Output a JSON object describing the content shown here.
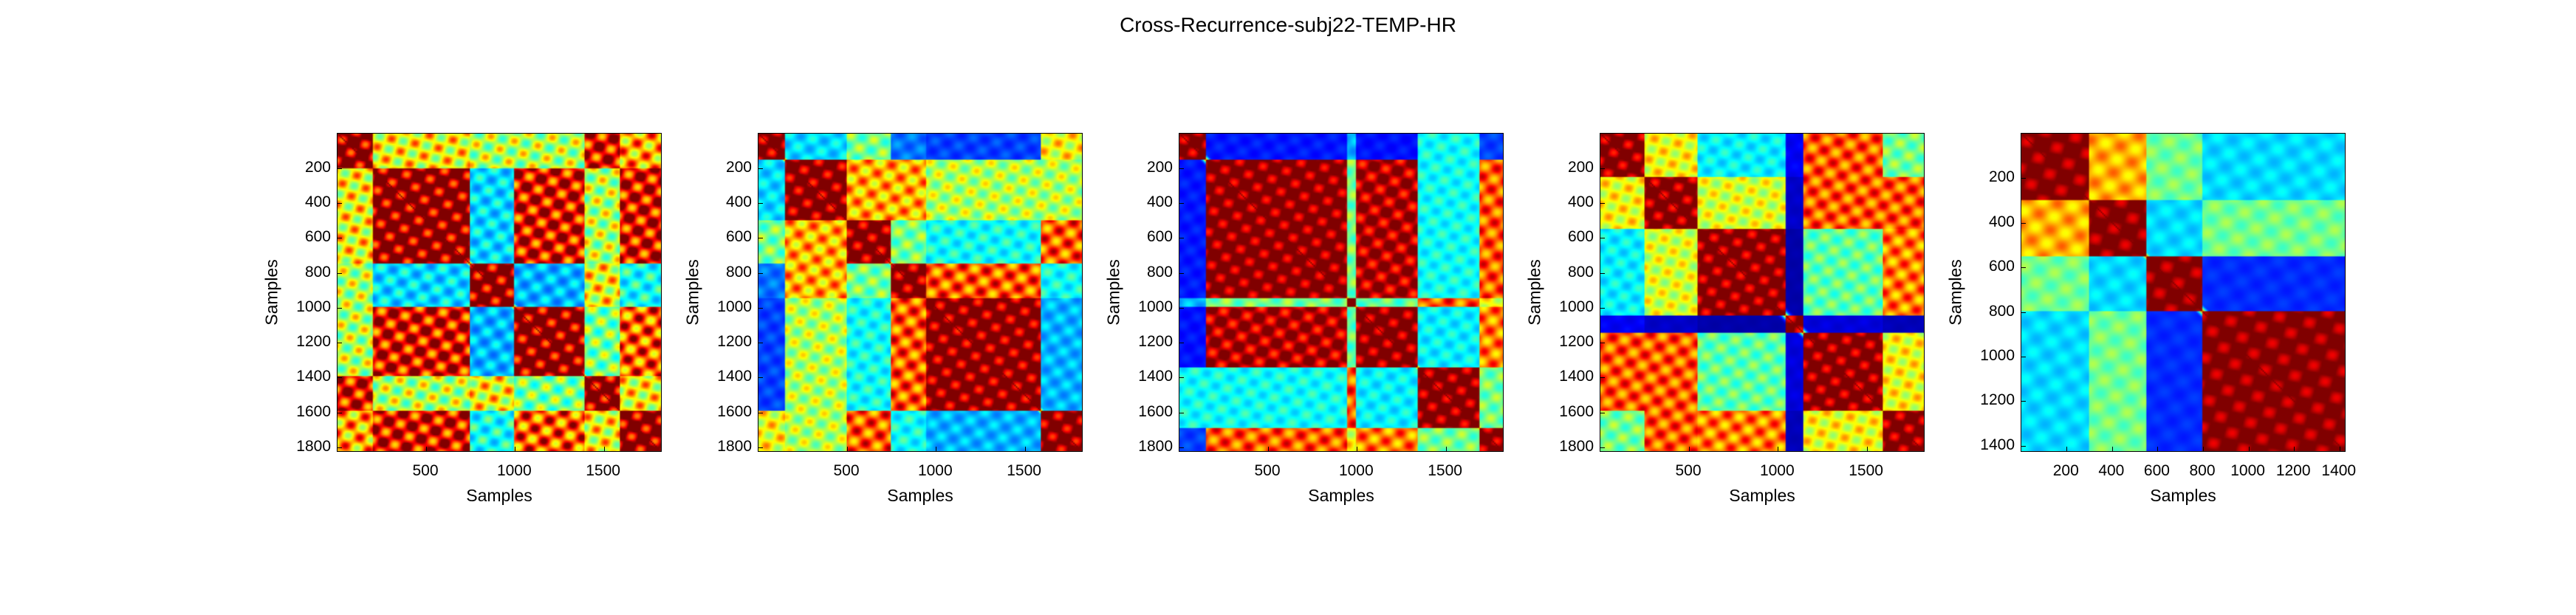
{
  "title": "Cross-Recurrence-subj22-TEMP-HR",
  "chart_data": [
    {
      "type": "heatmap",
      "colormap": "jet",
      "n": 1800,
      "xlabel": "Samples",
      "ylabel": "Samples",
      "xticks": [
        500,
        1000,
        1500
      ],
      "yticks": [
        200,
        400,
        600,
        800,
        1000,
        1200,
        1400,
        1600,
        1800
      ],
      "xlim": [
        1,
        1830
      ],
      "ylim": [
        1,
        1830
      ],
      "segments": [
        0,
        200,
        750,
        1000,
        1400,
        1600,
        1830
      ],
      "states": [
        0.35,
        0.55,
        0.1,
        0.6,
        0.3,
        0.5
      ],
      "texture": 0.25
    },
    {
      "type": "heatmap",
      "colormap": "jet",
      "n": 1800,
      "xlabel": "Samples",
      "ylabel": "Samples",
      "xticks": [
        500,
        1000,
        1500
      ],
      "yticks": [
        200,
        400,
        600,
        800,
        1000,
        1200,
        1400,
        1600,
        1800
      ],
      "xlim": [
        1,
        1830
      ],
      "ylim": [
        1,
        1830
      ],
      "segments": [
        0,
        150,
        500,
        750,
        950,
        1600,
        1830
      ],
      "states": [
        0.15,
        0.6,
        0.45,
        0.75,
        0.85,
        0.35
      ],
      "texture": 0.18
    },
    {
      "type": "heatmap",
      "colormap": "jet",
      "n": 1800,
      "xlabel": "Samples",
      "ylabel": "Samples",
      "xticks": [
        500,
        1000,
        1500
      ],
      "yticks": [
        200,
        400,
        600,
        800,
        1000,
        1200,
        1400,
        1600,
        1800
      ],
      "xlim": [
        1,
        1830
      ],
      "ylim": [
        1,
        1830
      ],
      "segments": [
        0,
        150,
        950,
        1000,
        1350,
        1700,
        1830
      ],
      "states": [
        0.0,
        0.8,
        0.5,
        0.82,
        0.4,
        0.7
      ],
      "texture": 0.15
    },
    {
      "type": "heatmap",
      "colormap": "jet",
      "n": 1800,
      "xlabel": "Samples",
      "ylabel": "Samples",
      "xticks": [
        500,
        1000,
        1500
      ],
      "yticks": [
        200,
        400,
        600,
        800,
        1000,
        1200,
        1400,
        1600,
        1800
      ],
      "xlim": [
        1,
        1830
      ],
      "ylim": [
        1,
        1830
      ],
      "segments": [
        0,
        250,
        550,
        1050,
        1150,
        1600,
        1830
      ],
      "states": [
        0.3,
        0.5,
        0.72,
        -0.6,
        0.4,
        0.6
      ],
      "texture": 0.15
    },
    {
      "type": "heatmap",
      "colormap": "jet",
      "n": 1400,
      "xlabel": "Samples",
      "ylabel": "Samples",
      "xticks": [
        200,
        400,
        600,
        800,
        1000,
        1200,
        1400
      ],
      "yticks": [
        200,
        400,
        600,
        800,
        1000,
        1200,
        1400
      ],
      "xlim": [
        1,
        1430
      ],
      "ylim": [
        1,
        1430
      ],
      "segments": [
        0,
        300,
        550,
        800,
        1430
      ],
      "states": [
        0.3,
        0.45,
        0.0,
        0.75
      ],
      "texture": 0.1
    }
  ]
}
